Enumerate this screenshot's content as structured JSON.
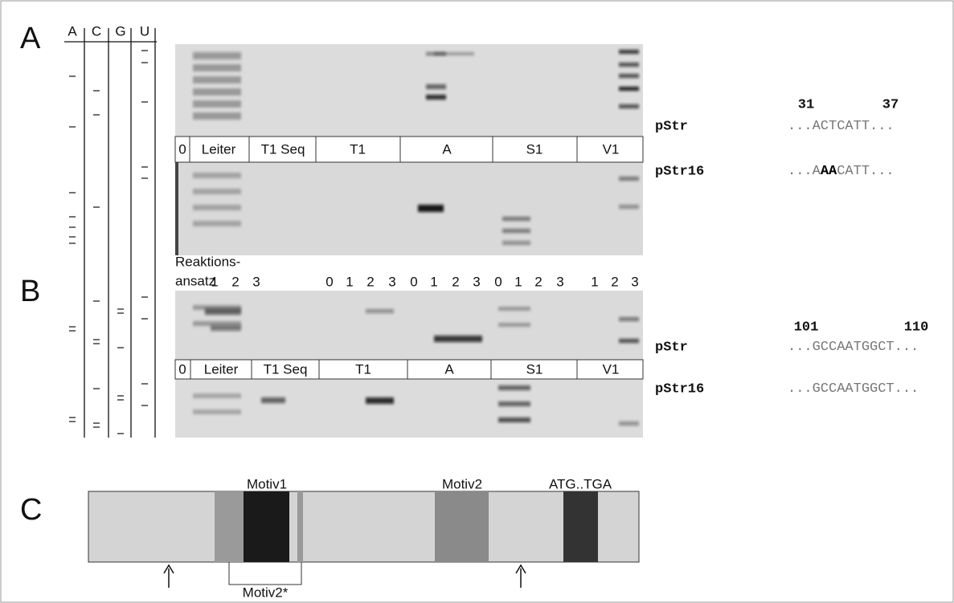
{
  "panel_labels": [
    "A",
    "B",
    "C"
  ],
  "bases": [
    "A",
    "C",
    "G",
    "U"
  ],
  "panel_a": {
    "lanes": [
      "0",
      "Leiter",
      "T1 Seq",
      "T1",
      "A",
      "S1",
      "V1"
    ],
    "positions": [
      "31",
      "37"
    ],
    "constructs": [
      {
        "name": "pStr",
        "seq": [
          "...ACTCATT..."
        ]
      },
      {
        "name": "pStr16",
        "seq": [
          "...A",
          "AA",
          "CATT..."
        ]
      }
    ]
  },
  "panel_b": {
    "reaction_label": [
      "Reaktions-",
      "ansatz"
    ],
    "reaction_numbers": [
      "1",
      "2",
      "3",
      "0",
      "1",
      "2",
      "3",
      "0",
      "1",
      "2",
      "3",
      "0",
      "1",
      "2",
      "3",
      "1",
      "2",
      "3"
    ],
    "lanes": [
      "0",
      "Leiter",
      "T1 Seq",
      "T1",
      "A",
      "S1",
      "V1"
    ],
    "positions": [
      "101",
      "110"
    ],
    "constructs": [
      {
        "name": "pStr",
        "seq": [
          "...GCCAATGGCT..."
        ]
      },
      {
        "name": "pStr16",
        "seq": [
          "...GCCAATGGCT..."
        ]
      }
    ]
  },
  "panel_c": {
    "features": [
      "Motiv1",
      "Motiv2",
      "ATG..TGA"
    ],
    "bracket": "Motiv2*"
  }
}
